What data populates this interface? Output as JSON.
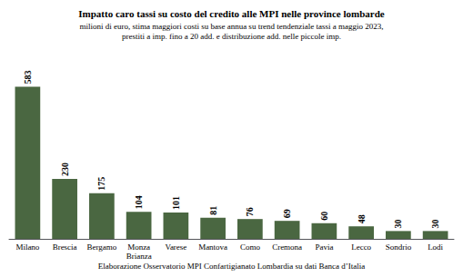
{
  "chart_data": {
    "type": "bar",
    "title": "Impatto caro tassi su costo del credito alle MPI nelle province lombarde",
    "subtitle": "milioni di euro, stima maggiori costi su base annua su trend tendenziale tassi a maggio 2023,\nprestiti a imp. fino a 20 add. e distribuzione add. nelle piccole imp.",
    "annotations": [
      "Elaborazione Osservatorio MPI Confartigianato Lombardia su dati Banca d’Italia"
    ],
    "categories": [
      "Milano",
      "Brescia",
      "Bergamo",
      "Monza\nBrianza",
      "Varese",
      "Mantova",
      "Como",
      "Cremona",
      "Pavia",
      "Lecco",
      "Sondrio",
      "Lodi"
    ],
    "values": [
      583,
      230,
      175,
      104,
      101,
      81,
      76,
      69,
      60,
      48,
      30,
      30
    ],
    "color": "#4a6741",
    "ylim": [
      0,
      700
    ],
    "grid": false,
    "data_labels": true,
    "tick_labels": "x"
  }
}
